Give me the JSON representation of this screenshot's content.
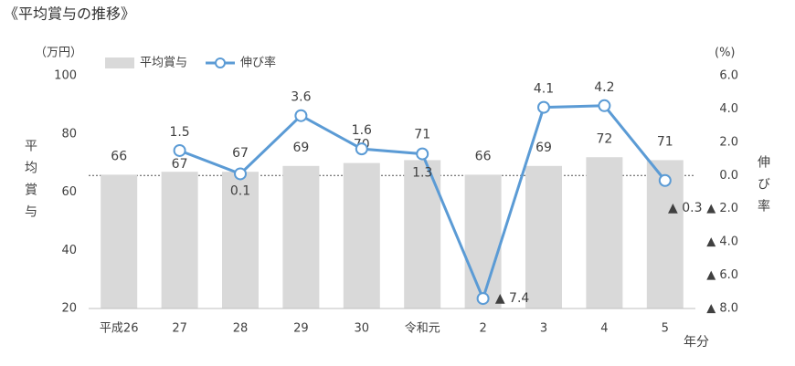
{
  "chart_data": {
    "type": "bar-line",
    "title": "《平均賞与の推移》",
    "y_unit": "（万円）",
    "y2_unit": "(%)",
    "y_label": "平均賞与",
    "y2_label": "伸び率",
    "x_label": "年分",
    "categories": [
      "平成26",
      "27",
      "28",
      "29",
      "30",
      "令和元",
      "2",
      "3",
      "4",
      "5"
    ],
    "series": [
      {
        "name": "平均賞与",
        "type": "bar",
        "color": "#d9d9d9",
        "values": [
          66,
          67,
          67,
          69,
          70,
          71,
          66,
          69,
          72,
          71
        ]
      },
      {
        "name": "伸び率",
        "type": "line",
        "axis": "y2",
        "color": "#5b9bd5",
        "values": [
          null,
          1.5,
          0.1,
          3.6,
          1.6,
          1.3,
          -7.4,
          4.1,
          4.2,
          -0.3
        ],
        "value_labels": [
          null,
          "1.5",
          "0.1",
          "3.6",
          "1.6",
          "1.3",
          "▲ 7.4",
          "4.1",
          "4.2",
          "▲ 0.3"
        ]
      }
    ],
    "ylim": [
      20,
      100
    ],
    "yticks": [
      20,
      40,
      60,
      80,
      100
    ],
    "y2lim": [
      -8,
      6
    ],
    "y2ticks": [
      {
        "value": -8,
        "label": "▲ 8.0"
      },
      {
        "value": -6,
        "label": "▲ 6.0"
      },
      {
        "value": -4,
        "label": "▲ 4.0"
      },
      {
        "value": -2,
        "label": "▲ 2.0"
      },
      {
        "value": 0,
        "label": "0.0"
      },
      {
        "value": 2,
        "label": "2.0"
      },
      {
        "value": 4,
        "label": "4.0"
      },
      {
        "value": 6,
        "label": "6.0"
      }
    ],
    "legend": "top-left"
  }
}
